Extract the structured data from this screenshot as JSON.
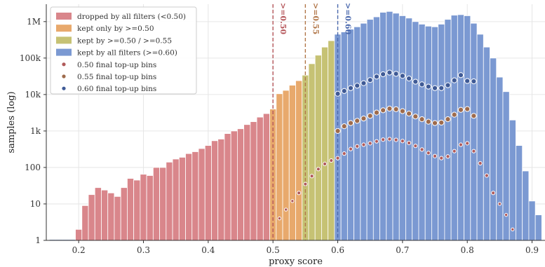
{
  "chart_data": {
    "type": "bar",
    "xlabel": "proxy score",
    "ylabel": "samples (log)",
    "xlim": [
      0.15,
      0.92
    ],
    "ylim": [
      1,
      3000000
    ],
    "yscale": "log",
    "grid": true,
    "legend_position": "top-left",
    "x_ticks": [
      0.2,
      0.3,
      0.4,
      0.5,
      0.6,
      0.7,
      0.8,
      0.9
    ],
    "x_tick_labels": [
      "0.2",
      "0.3",
      "0.4",
      "0.5",
      "0.6",
      "0.7",
      "0.8",
      "0.9"
    ],
    "y_ticks": [
      1,
      10,
      100,
      1000,
      10000,
      100000,
      1000000
    ],
    "y_tick_labels": [
      "1",
      "10",
      "100",
      "1k",
      "10k",
      "100k",
      "1M"
    ],
    "bin_width": 0.01,
    "bin_centers": [
      0.16,
      0.17,
      0.18,
      0.19,
      0.2,
      0.21,
      0.22,
      0.23,
      0.24,
      0.25,
      0.26,
      0.27,
      0.28,
      0.29,
      0.3,
      0.31,
      0.32,
      0.33,
      0.34,
      0.35,
      0.36,
      0.37,
      0.38,
      0.39,
      0.4,
      0.41,
      0.42,
      0.43,
      0.44,
      0.45,
      0.46,
      0.47,
      0.48,
      0.49,
      0.5,
      0.51,
      0.52,
      0.53,
      0.54,
      0.55,
      0.56,
      0.57,
      0.58,
      0.59,
      0.6,
      0.61,
      0.62,
      0.63,
      0.64,
      0.65,
      0.66,
      0.67,
      0.68,
      0.69,
      0.7,
      0.71,
      0.72,
      0.73,
      0.74,
      0.75,
      0.76,
      0.77,
      0.78,
      0.79,
      0.8,
      0.81,
      0.82,
      0.83,
      0.84,
      0.85,
      0.86,
      0.87,
      0.88,
      0.89,
      0.9,
      0.91
    ],
    "counts": [
      1,
      1,
      1,
      1,
      2,
      9,
      18,
      28,
      24,
      20,
      16,
      28,
      50,
      45,
      65,
      60,
      100,
      100,
      140,
      170,
      190,
      240,
      270,
      330,
      400,
      540,
      600,
      850,
      1000,
      1150,
      1500,
      1800,
      2400,
      3000,
      4000,
      10500,
      13000,
      18000,
      24000,
      34000,
      70000,
      120000,
      200000,
      300000,
      450000,
      520000,
      620000,
      720000,
      900000,
      1150000,
      1350000,
      1800000,
      1900000,
      1700000,
      1450000,
      1250000,
      1000000,
      850000,
      750000,
      720000,
      850000,
      1150000,
      1500000,
      1550000,
      1450000,
      900000,
      450000,
      200000,
      100000,
      30000,
      12000,
      2000,
      400,
      80,
      12,
      5
    ],
    "series": [
      {
        "name": "dropped by all filters (<0.50)",
        "color": "#d9868b",
        "range": [
          0.15,
          0.5
        ]
      },
      {
        "name": "kept only by >=0.50",
        "color": "#e8a96c",
        "range": [
          0.5,
          0.55
        ]
      },
      {
        "name": "kept by >=0.50 / >=0.55",
        "color": "#c6c274",
        "range": [
          0.55,
          0.6
        ]
      },
      {
        "name": "kept by all filters (>=0.60)",
        "color": "#7b99d2",
        "range": [
          0.6,
          0.92
        ]
      }
    ],
    "topup_series": [
      {
        "name": "0.50 final top-up bins",
        "color": "#b05a5a",
        "x": [
          0.51,
          0.52,
          0.53,
          0.54,
          0.55,
          0.56,
          0.57,
          0.58,
          0.59,
          0.6,
          0.61,
          0.62,
          0.63,
          0.64,
          0.65,
          0.66,
          0.67,
          0.68,
          0.69,
          0.7,
          0.71,
          0.72,
          0.73,
          0.74,
          0.75,
          0.76,
          0.77,
          0.78,
          0.79,
          0.8,
          0.81,
          0.82,
          0.83,
          0.84,
          0.85,
          0.86,
          0.87
        ],
        "y": [
          4,
          7,
          12,
          20,
          35,
          58,
          90,
          125,
          155,
          180,
          240,
          320,
          380,
          420,
          460,
          520,
          580,
          600,
          570,
          530,
          470,
          390,
          310,
          250,
          205,
          180,
          200,
          280,
          420,
          460,
          280,
          130,
          60,
          20,
          10,
          5,
          2
        ]
      },
      {
        "name": "0.55 final top-up bins",
        "color": "#9e6b4c",
        "x": [
          0.6,
          0.61,
          0.62,
          0.63,
          0.64,
          0.65,
          0.66,
          0.67,
          0.68,
          0.69,
          0.7,
          0.71,
          0.72,
          0.73,
          0.74,
          0.75,
          0.76,
          0.77,
          0.78,
          0.79,
          0.8,
          0.81
        ],
        "y": [
          1000,
          1350,
          1650,
          1900,
          2200,
          2600,
          3200,
          3700,
          4100,
          3950,
          3500,
          3000,
          2500,
          2100,
          1800,
          1650,
          1700,
          2100,
          2800,
          3800,
          4000,
          2600
        ]
      },
      {
        "name": "0.60 final top-up bins",
        "color": "#3f5a96",
        "x": [
          0.6,
          0.61,
          0.62,
          0.63,
          0.64,
          0.65,
          0.66,
          0.67,
          0.68,
          0.69,
          0.7,
          0.71,
          0.72,
          0.73,
          0.74,
          0.75,
          0.76,
          0.77,
          0.78,
          0.79,
          0.8,
          0.81
        ],
        "y": [
          10500,
          12500,
          15000,
          17500,
          20500,
          25000,
          31000,
          36000,
          40000,
          37000,
          32500,
          27500,
          22500,
          19000,
          16500,
          15000,
          15000,
          18000,
          24500,
          34000,
          23500,
          23000
        ]
      }
    ],
    "threshold_lines": [
      {
        "x": 0.5,
        "label": ">=0.50",
        "color": "#b5565a"
      },
      {
        "x": 0.55,
        "label": ">=0.55",
        "color": "#b2784b"
      },
      {
        "x": 0.6,
        "label": ">=0.60",
        "color": "#4a68ad"
      }
    ]
  }
}
